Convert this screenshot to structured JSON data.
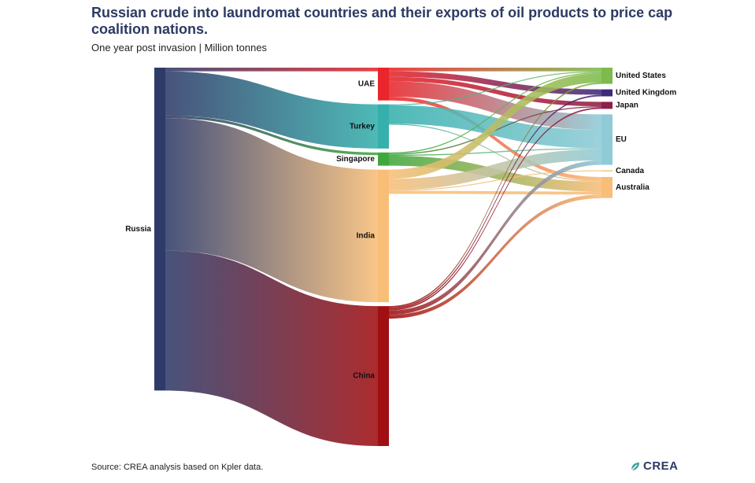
{
  "title": "Russian crude into laundromat countries and their exports of oil products to price cap coalition nations.",
  "subtitle": "One year post invasion | Million tonnes",
  "source": "Source: CREA analysis based on Kpler data.",
  "logo_text": "CREA",
  "logo_icon": "crea-leaf-icon",
  "chart_data": {
    "type": "sankey",
    "title": "Russian crude into laundromat countries and their exports of oil products to price cap coalition nations.",
    "subtitle": "One year post invasion | Million tonnes",
    "units": "Million tonnes",
    "nodes": [
      {
        "id": "Russia",
        "label": "Russia",
        "column": 0,
        "color": "#2e3b69"
      },
      {
        "id": "UAE",
        "label": "UAE",
        "column": 1,
        "color": "#e8262b"
      },
      {
        "id": "Turkey",
        "label": "Turkey",
        "column": 1,
        "color": "#35b0ac"
      },
      {
        "id": "Singapore",
        "label": "Singapore",
        "column": 1,
        "color": "#3fa83d"
      },
      {
        "id": "India",
        "label": "India",
        "column": 1,
        "color": "#f8be78"
      },
      {
        "id": "China",
        "label": "China",
        "column": 1,
        "color": "#a00f12"
      },
      {
        "id": "United States",
        "label": "United States",
        "column": 2,
        "color": "#7dbb4c"
      },
      {
        "id": "United Kingdom",
        "label": "United Kingdom",
        "column": 2,
        "color": "#3d2a7a"
      },
      {
        "id": "Japan",
        "label": "Japan",
        "column": 2,
        "color": "#8e1d47"
      },
      {
        "id": "EU",
        "label": "EU",
        "column": 2,
        "color": "#8ecbd6"
      },
      {
        "id": "Canada",
        "label": "Canada",
        "column": 2,
        "color": "#f1c57c"
      },
      {
        "id": "Australia",
        "label": "Australia",
        "column": 2,
        "color": "#f8bd78"
      }
    ],
    "links": [
      {
        "source": "Russia",
        "target": "UAE",
        "value": 1.0
      },
      {
        "source": "Russia",
        "target": "Turkey",
        "value": 12.0
      },
      {
        "source": "Russia",
        "target": "Singapore",
        "value": 0.7
      },
      {
        "source": "Russia",
        "target": "India",
        "value": 36.0
      },
      {
        "source": "Russia",
        "target": "China",
        "value": 38.0
      },
      {
        "source": "UAE",
        "target": "United States",
        "value": 1.0
      },
      {
        "source": "UAE",
        "target": "United Kingdom",
        "value": 1.5
      },
      {
        "source": "UAE",
        "target": "Japan",
        "value": 1.2
      },
      {
        "source": "UAE",
        "target": "EU",
        "value": 4.2
      },
      {
        "source": "UAE",
        "target": "Australia",
        "value": 1.0
      },
      {
        "source": "Turkey",
        "target": "United States",
        "value": 0.2
      },
      {
        "source": "Turkey",
        "target": "EU",
        "value": 5.0
      },
      {
        "source": "Turkey",
        "target": "Australia",
        "value": 0.2
      },
      {
        "source": "Singapore",
        "target": "United States",
        "value": 0.3
      },
      {
        "source": "Singapore",
        "target": "Japan",
        "value": 0.3
      },
      {
        "source": "Singapore",
        "target": "EU",
        "value": 0.3
      },
      {
        "source": "Singapore",
        "target": "Australia",
        "value": 2.7
      },
      {
        "source": "India",
        "target": "United States",
        "value": 2.5
      },
      {
        "source": "India",
        "target": "EU",
        "value": 3.0
      },
      {
        "source": "India",
        "target": "Canada",
        "value": 0.2
      },
      {
        "source": "India",
        "target": "Australia",
        "value": 0.8
      },
      {
        "source": "China",
        "target": "United States",
        "value": 0.4
      },
      {
        "source": "China",
        "target": "United Kingdom",
        "value": 0.4
      },
      {
        "source": "China",
        "target": "Japan",
        "value": 0.4
      },
      {
        "source": "China",
        "target": "EU",
        "value": 1.2
      },
      {
        "source": "China",
        "target": "Australia",
        "value": 1.0
      }
    ]
  }
}
